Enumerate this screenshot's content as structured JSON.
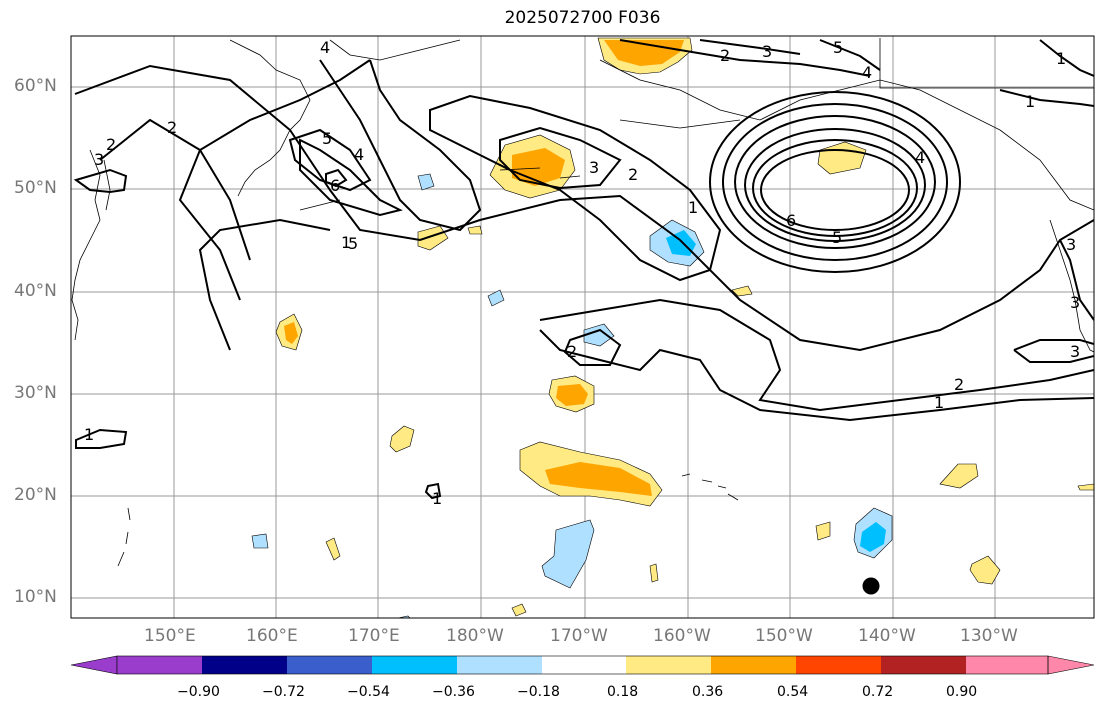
{
  "title": "2025072700 F036",
  "lat_labels": [
    "60°N",
    "50°N",
    "40°N",
    "30°N",
    "20°N",
    "10°N"
  ],
  "lon_labels": [
    "150°E",
    "160°E",
    "170°E",
    "180°W",
    "170°W",
    "160°W",
    "150°W",
    "140°W",
    "130°W"
  ],
  "colorbar": {
    "ticks": [
      "−0.90",
      "−0.72",
      "−0.54",
      "−0.36",
      "−0.18",
      "0.18",
      "0.36",
      "0.54",
      "0.72",
      "0.90"
    ],
    "colors": [
      "#9a3dcc",
      "#000088",
      "#3a5fcd",
      "#00bfff",
      "#b0e0ff",
      "#ffffff",
      "#ffea84",
      "#ffa500",
      "#ff4500",
      "#b22222",
      "#ff88aa"
    ]
  },
  "contour_labels": [
    "4",
    "5",
    "2",
    "3",
    "5",
    "4",
    "1",
    "2",
    "3",
    "2",
    "5",
    "4",
    "6",
    "3",
    "2",
    "1",
    "6",
    "5",
    "4",
    "1",
    "1",
    "3",
    "3",
    "2",
    "2",
    "1",
    "1",
    "1",
    "3"
  ],
  "marker": "storm-center"
}
